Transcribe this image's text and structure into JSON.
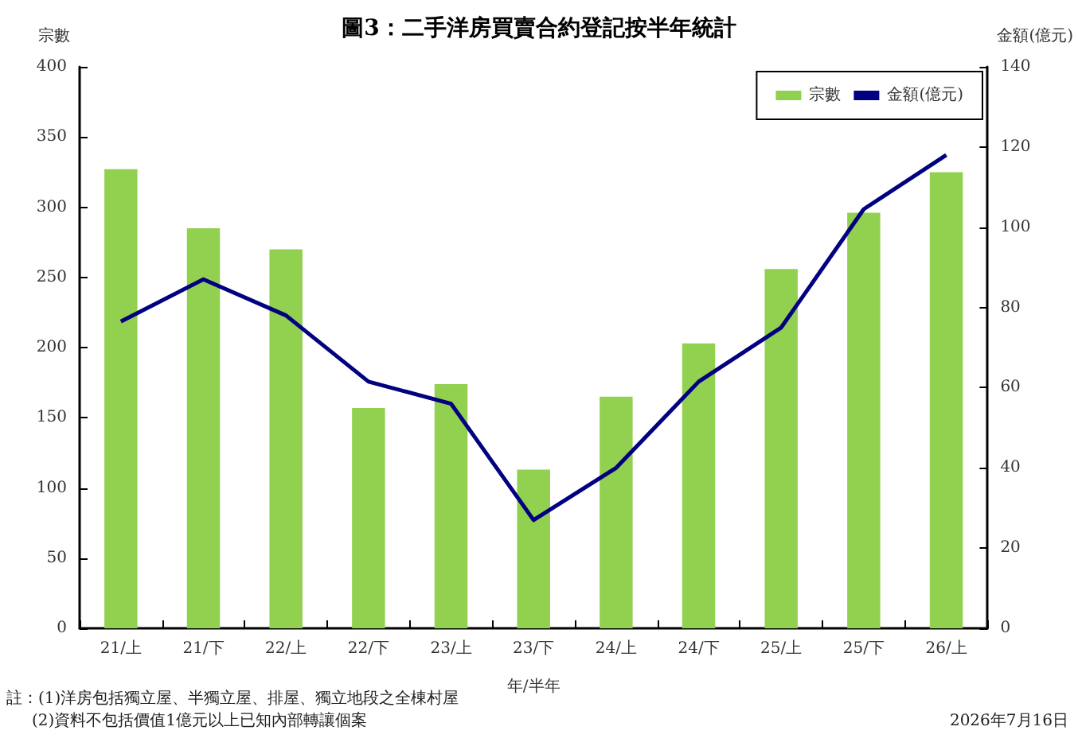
{
  "chart_data": {
    "type": "bar",
    "title": "圖3：二手洋房買賣合約登記按半年統計",
    "xlabel": "年/半年",
    "ylabel": "宗數",
    "y2label": "金額(億元)",
    "categories": [
      "21/上",
      "21/下",
      "22/上",
      "22/下",
      "23/上",
      "23/下",
      "24/上",
      "24/下",
      "25/上",
      "25/下",
      "26/上"
    ],
    "series": [
      {
        "name": "宗數",
        "color": "#92d050",
        "values": [
          327,
          285,
          270,
          157,
          174,
          113,
          165,
          203,
          256,
          296,
          325
        ]
      },
      {
        "name": "金額(億元)",
        "type": "line",
        "axis": "y2",
        "color": "#000080",
        "values": [
          76.5,
          87,
          78,
          61.5,
          56,
          27,
          40,
          61.5,
          75,
          104.5,
          118
        ]
      }
    ],
    "ylim": [
      0,
      400
    ],
    "yticks": [
      0,
      50,
      100,
      150,
      200,
      250,
      300,
      350,
      400
    ],
    "y2lim": [
      0,
      140
    ],
    "y2ticks": [
      0,
      20,
      40,
      60,
      80,
      100,
      120,
      140
    ],
    "grid": false,
    "legend": "top right",
    "marker": "none",
    "annotations": [
      "註：(1)洋房包括獨立屋、半獨立屋、排屋、獨立地段之全棟村屋",
      "(2)資料不包括價值1億元以上已知內部轉讓個案",
      "2026年7月16日"
    ]
  }
}
